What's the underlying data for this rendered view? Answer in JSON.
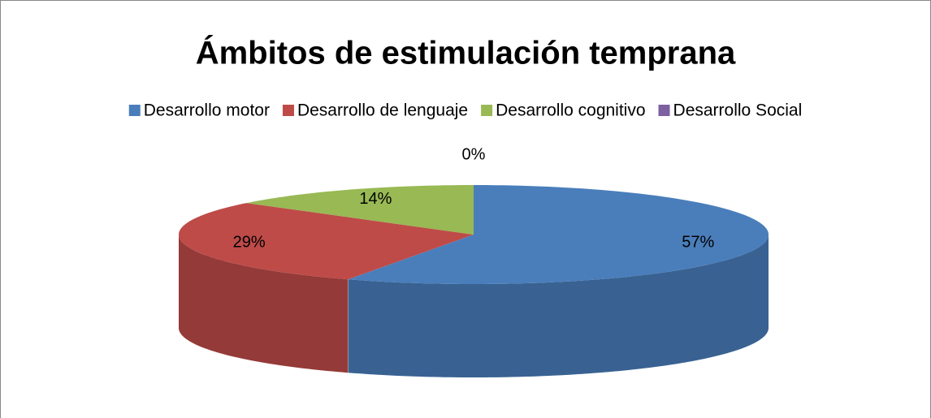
{
  "chart_data": {
    "type": "pie",
    "title": "Ámbitos  de estimulación temprana",
    "categories": [
      "Desarrollo motor",
      "Desarrollo de lenguaje",
      "Desarrollo cognitivo",
      "Desarrollo Social"
    ],
    "values": [
      57,
      29,
      14,
      0
    ],
    "value_labels": [
      "57%",
      "29%",
      "14%",
      "0%"
    ],
    "colors": [
      "#4a7ebb",
      "#be4b48",
      "#98b954",
      "#7d60a0"
    ],
    "legend": "top"
  }
}
